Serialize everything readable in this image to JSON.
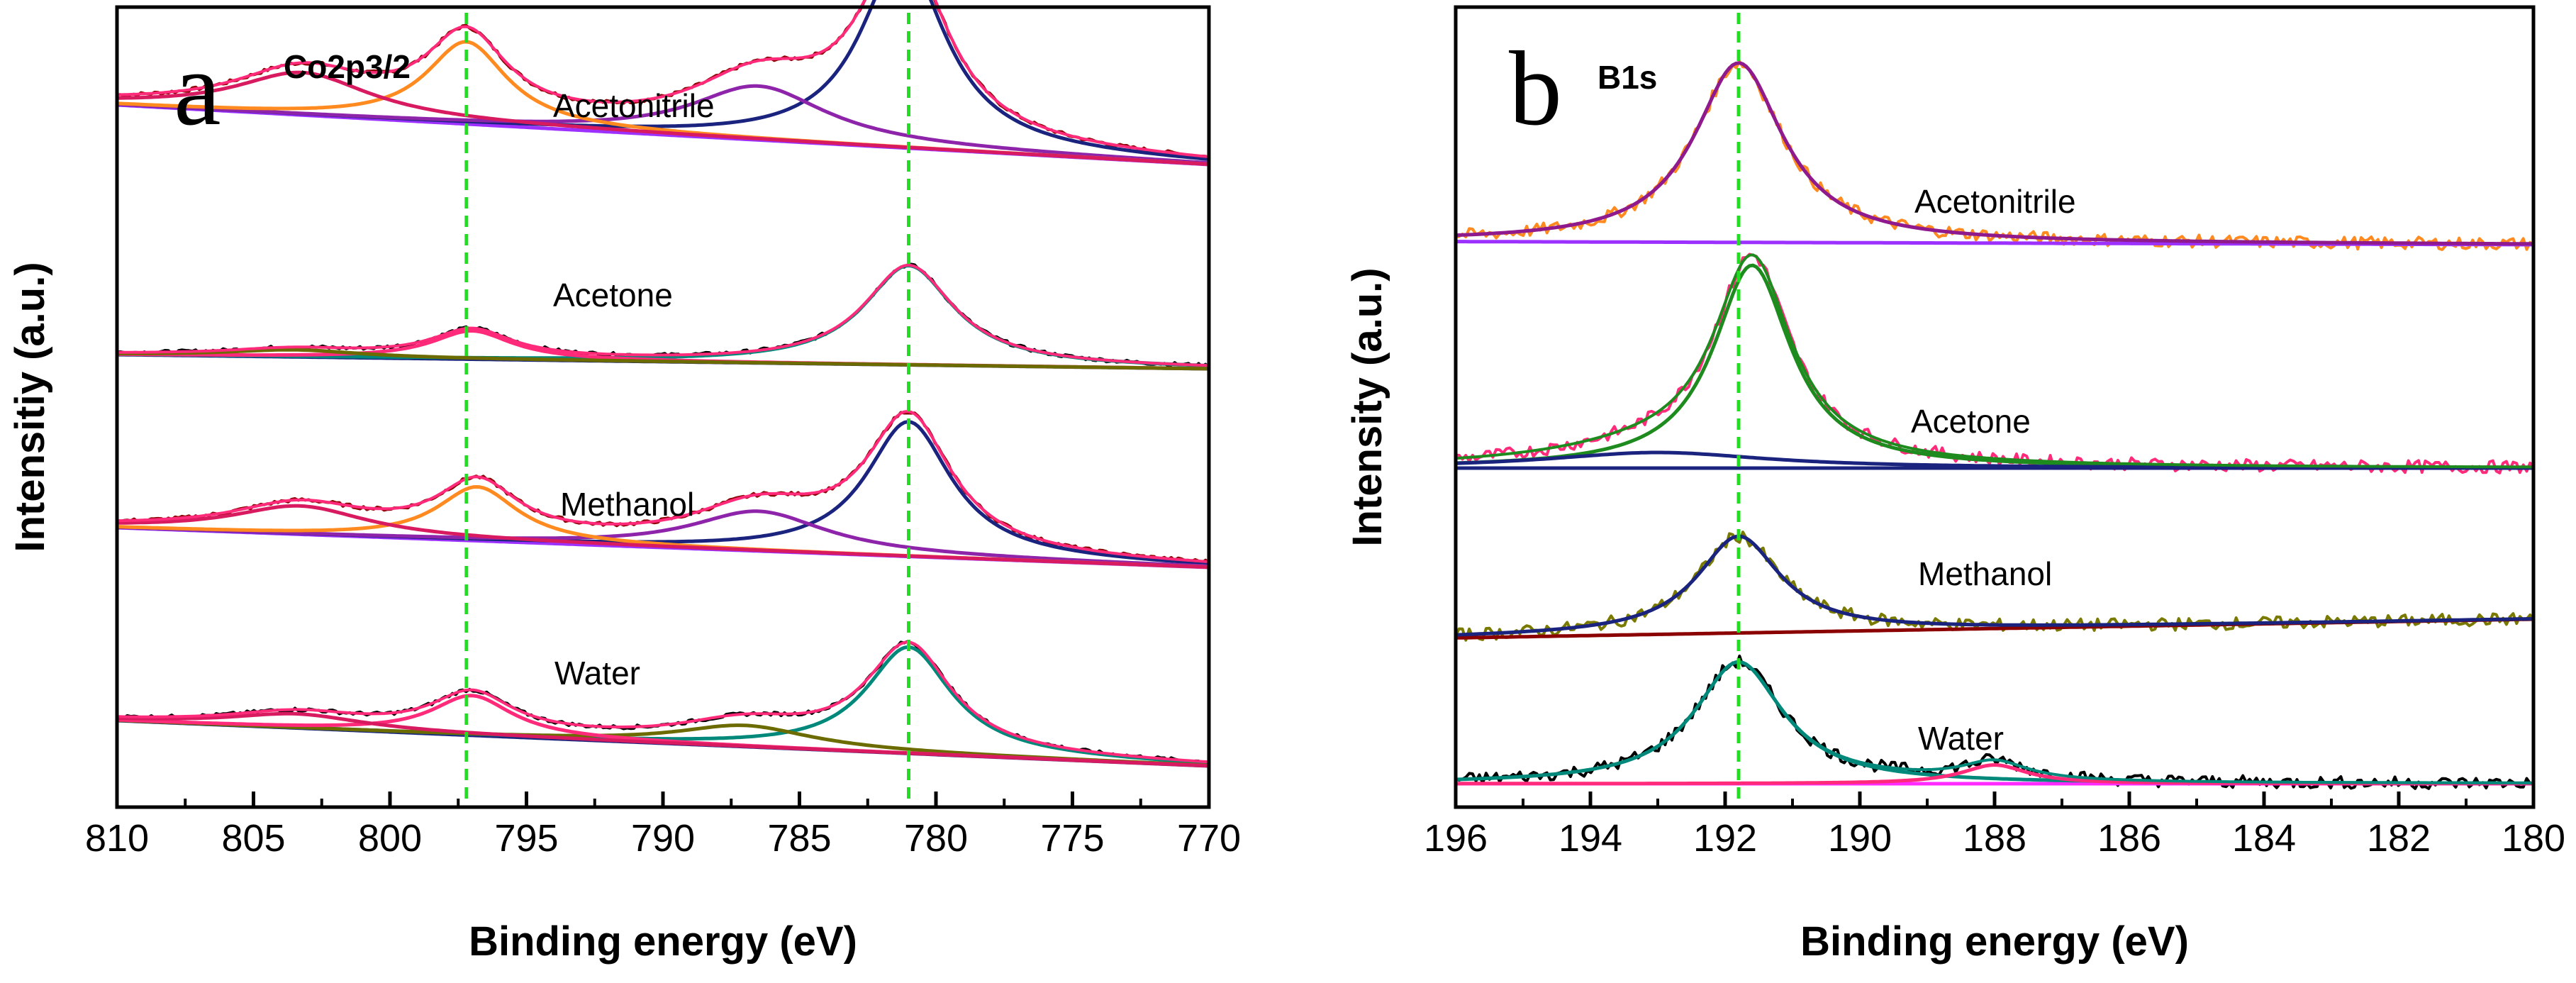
{
  "chart_data": [
    {
      "type": "line",
      "panel": "a",
      "subtitle": "Co2p3/2",
      "xlabel": "Binding energy (eV)",
      "ylabel": "Intensitiy (a.u.)",
      "xlim": [
        810,
        770
      ],
      "x_ticks": [
        810,
        805,
        800,
        795,
        790,
        785,
        780,
        775,
        770
      ],
      "reference_lines_ev": [
        797.2,
        781.0
      ],
      "reference_line_color": "#22dd22",
      "series": [
        {
          "name": "Acetonitrile",
          "offset": 3,
          "background": [
            0.42,
            0.0
          ],
          "peaks": [
            {
              "center": 781.2,
              "height": 1.35,
              "width": 1.9,
              "color": "#1a237e"
            },
            {
              "center": 786.5,
              "height": 0.38,
              "width": 3.0,
              "color": "#8e24aa"
            },
            {
              "center": 797.2,
              "height": 0.58,
              "width": 1.8,
              "color": "#ff8a1f"
            },
            {
              "center": 803.2,
              "height": 0.3,
              "width": 3.0,
              "color": "#d81b60"
            }
          ],
          "data_color": "#8b0000",
          "fit_color": "#ff2a7a",
          "bg_color": "#9b30ff"
        },
        {
          "name": "Acetone",
          "offset": 2,
          "background": [
            0.1,
            0.0
          ],
          "peaks": [
            {
              "center": 781.0,
              "height": 0.7,
              "width": 2.0,
              "color": "#00897b"
            },
            {
              "center": 797.0,
              "height": 0.2,
              "width": 1.8,
              "color": "#ff2a7a"
            },
            {
              "center": 803.5,
              "height": 0.05,
              "width": 3.0,
              "color": "#6b6b00"
            }
          ],
          "data_color": "#000000",
          "fit_color": "#ff2a7a",
          "bg_color": "#1a237e"
        },
        {
          "name": "Methanol",
          "offset": 1,
          "background": [
            0.28,
            0.0
          ],
          "peaks": [
            {
              "center": 781.0,
              "height": 0.95,
              "width": 1.9,
              "color": "#1a237e"
            },
            {
              "center": 786.5,
              "height": 0.28,
              "width": 3.0,
              "color": "#8e24aa"
            },
            {
              "center": 796.8,
              "height": 0.38,
              "width": 1.8,
              "color": "#ff8a1f"
            },
            {
              "center": 803.3,
              "height": 0.2,
              "width": 3.0,
              "color": "#d81b60"
            }
          ],
          "data_color": "#8b0000",
          "fit_color": "#ff2a7a",
          "bg_color": "#9b30ff"
        },
        {
          "name": "Water",
          "offset": 0,
          "background": [
            0.32,
            0.0
          ],
          "peaks": [
            {
              "center": 781.0,
              "height": 0.75,
              "width": 1.9,
              "color": "#00897b"
            },
            {
              "center": 787.0,
              "height": 0.15,
              "width": 3.0,
              "color": "#6b6b00"
            },
            {
              "center": 797.0,
              "height": 0.28,
              "width": 1.8,
              "color": "#ff2a7a"
            },
            {
              "center": 803.4,
              "height": 0.1,
              "width": 3.0,
              "color": "#d81b60"
            }
          ],
          "data_color": "#000000",
          "fit_color": "#ff2a7a",
          "bg_color": "#1a237e"
        }
      ]
    },
    {
      "type": "line",
      "panel": "b",
      "subtitle": "B1s",
      "xlabel": "Binding energy (eV)",
      "ylabel": "Intensity (a.u.)",
      "xlim": [
        196,
        180
      ],
      "x_ticks": [
        196,
        194,
        192,
        190,
        188,
        186,
        184,
        182,
        180
      ],
      "reference_lines_ev": [
        191.8
      ],
      "reference_line_color": "#22dd22",
      "series": [
        {
          "name": "Acetonitrile",
          "offset": 3,
          "background": [
            0.02,
            0.0
          ],
          "peaks": [
            {
              "center": 191.8,
              "height": 1.15,
              "width": 0.8,
              "color": "#8e1a8e"
            }
          ],
          "data_color": "#ff8a1f",
          "fit_color": "#8e1a8e",
          "bg_color": "#9b30ff"
        },
        {
          "name": "Acetone",
          "offset": 2,
          "background": [
            0.0,
            0.0
          ],
          "peaks": [
            {
              "center": 191.6,
              "height": 1.3,
              "width": 0.7,
              "color": "#1e8b1e"
            },
            {
              "center": 193.0,
              "height": 0.1,
              "width": 2.0,
              "color": "#1a237e"
            }
          ],
          "data_color": "#ff2a7a",
          "fit_color": "#1e8b1e",
          "bg_color": "#1a237e"
        },
        {
          "name": "Methanol",
          "offset": 1,
          "background": [
            -0.02,
            0.1
          ],
          "peaks": [
            {
              "center": 191.8,
              "height": 0.62,
              "width": 0.75,
              "color": "#1a237e"
            }
          ],
          "data_color": "#7a7a00",
          "fit_color": "#1a237e",
          "bg_color": "#8b0000"
        },
        {
          "name": "Water",
          "offset": 0,
          "background": [
            0.0,
            0.0
          ],
          "peaks": [
            {
              "center": 191.8,
              "height": 0.78,
              "width": 0.8,
              "color": "#00897b"
            },
            {
              "center": 188.0,
              "height": 0.12,
              "width": 0.6,
              "color": "#ff2a7a"
            }
          ],
          "data_color": "#000000",
          "fit_color": "#00897b",
          "bg_color": "#ff2aff"
        }
      ]
    }
  ]
}
